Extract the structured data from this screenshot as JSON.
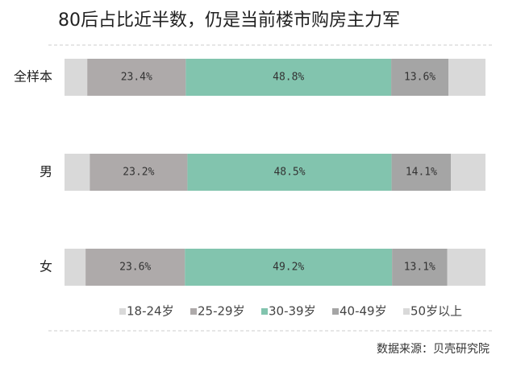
{
  "chart_data": {
    "type": "bar",
    "orientation": "horizontal",
    "stacked": true,
    "title": "80后占比近半数，仍是当前楼市购房主力军",
    "categories": [
      "全样本",
      "男",
      "女"
    ],
    "series": [
      {
        "name": "18-24岁",
        "color": "#d9d9d9",
        "values": [
          5.4,
          6.0,
          5.0
        ]
      },
      {
        "name": "25-29岁",
        "color": "#aeaaaa",
        "values": [
          23.4,
          23.2,
          23.6
        ],
        "value_labels": [
          "23.4%",
          "23.2%",
          "23.6%"
        ]
      },
      {
        "name": "30-39岁",
        "color": "#82c4ae",
        "values": [
          48.8,
          48.5,
          49.2
        ],
        "value_labels": [
          "48.8%",
          "48.5%",
          "49.2%"
        ]
      },
      {
        "name": "40-49岁",
        "color": "#a5a5a5",
        "values": [
          13.6,
          14.1,
          13.1
        ],
        "value_labels": [
          "13.6%",
          "14.1%",
          "13.1%"
        ]
      },
      {
        "name": "50岁以上",
        "color": "#d9d9d9",
        "values": [
          8.8,
          8.2,
          9.1
        ]
      }
    ],
    "xlim": [
      0,
      100
    ],
    "legend": "bottom",
    "source": "数据来源：贝壳研究院"
  }
}
